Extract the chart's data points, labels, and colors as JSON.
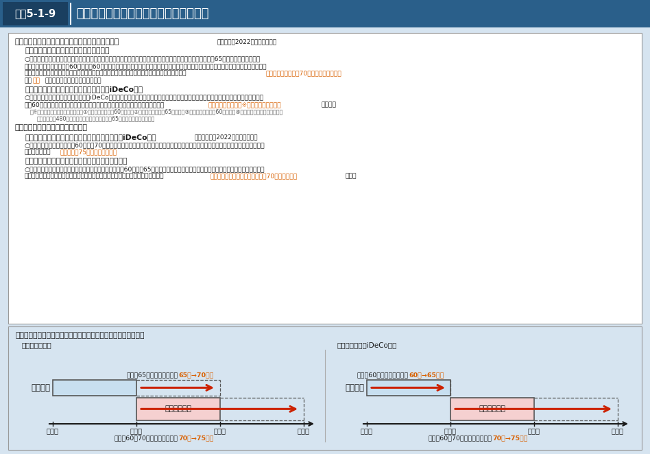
{
  "title_box_color": "#2a5f8a",
  "title_label_bg": "#1a3f60",
  "title_label_text": "図表5-1-9",
  "title_text": "確定拠出年金の加入可能要件の見直し等",
  "outer_bg": "#d6e4f0",
  "inner_bg": "#ffffff",
  "diagram_bg": "#d6e4f0",
  "orange_color": "#d96000",
  "black": "#1a1a1a",
  "gray": "#555555",
  "light_blue": "#c8dff0",
  "light_pink": "#f5d0d0",
  "arrow_color": "#cc2200",
  "ages": [
    "６０歳",
    "６５歳",
    "７０歳",
    "７５歳"
  ],
  "kanyuka_label": "加入可能",
  "jukyukaihi_label": "受給開始時期"
}
